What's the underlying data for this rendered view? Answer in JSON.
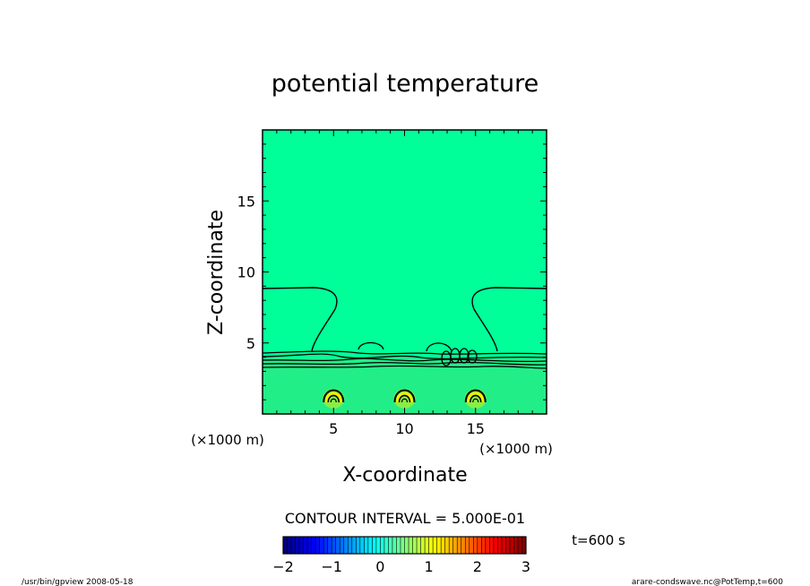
{
  "chart_data": {
    "type": "contour",
    "title": "potential temperature",
    "xlabel": "X-coordinate",
    "ylabel": "Z-coordinate",
    "x_unit": "(×1000 m)",
    "y_unit": "(×1000 m)",
    "xlim": [
      0,
      20
    ],
    "ylim": [
      0,
      20
    ],
    "xticks": [
      5,
      10,
      15
    ],
    "yticks": [
      5,
      10,
      15
    ],
    "contour_interval": "CONTOUR INTERVAL = 5.000E-01",
    "time_label": "t=600 s",
    "colorbar": {
      "ticks": [
        "-2",
        "-1",
        "0",
        "1",
        "2",
        "3"
      ],
      "min": -2,
      "max": 3
    },
    "background_color": "#00ff99",
    "lower_layer_color": "#22ee88",
    "bubbles": [
      {
        "x": 5,
        "z": 1.2
      },
      {
        "x": 10,
        "z": 1.2
      },
      {
        "x": 15,
        "z": 1.2
      }
    ]
  },
  "footer": {
    "left": "/usr/bin/gpview   2008-05-18",
    "right": "arare-condswave.nc@PotTemp,t=600"
  }
}
